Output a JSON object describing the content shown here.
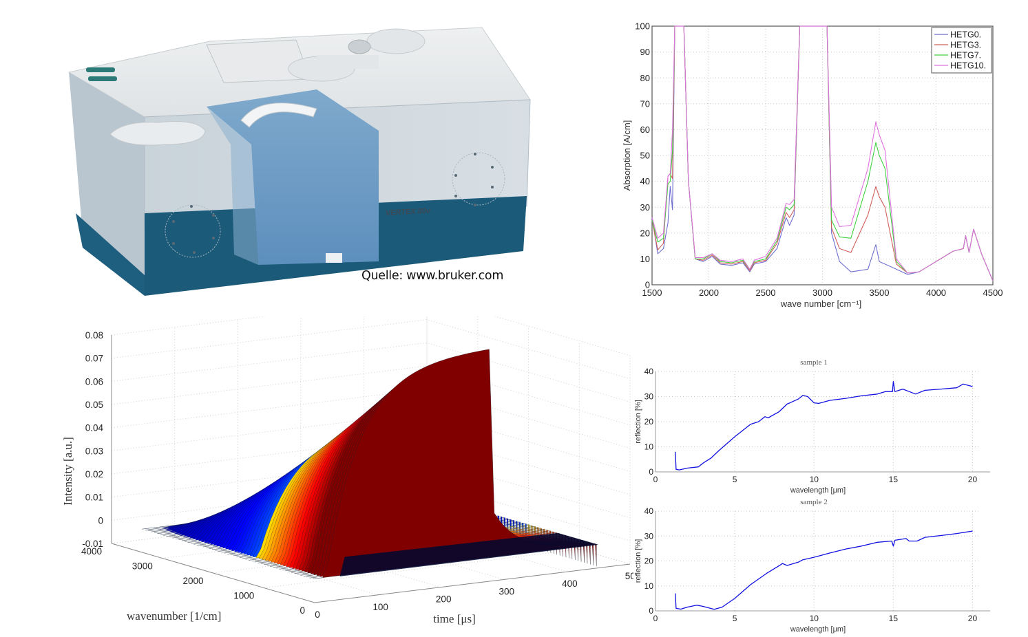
{
  "photo": {
    "subject": "FTIR spectrometer",
    "model_label": "VERTEX 80v",
    "caption": "Quelle: www.bruker.com"
  },
  "chart_data": [
    {
      "id": "absorption-spectrum",
      "type": "line",
      "title": "",
      "xlabel": "wave number [cm⁻¹]",
      "ylabel": "Absorption [A/cm]",
      "xlim": [
        1500,
        4500
      ],
      "ylim": [
        0,
        100
      ],
      "xticks": [
        1500,
        2000,
        2500,
        3000,
        3500,
        4000,
        4500
      ],
      "yticks": [
        0,
        10,
        20,
        30,
        40,
        50,
        60,
        70,
        80,
        90,
        100
      ],
      "grid": true,
      "legend_position": "upper right",
      "x": [
        1500,
        1550,
        1600,
        1640,
        1660,
        1680,
        1700,
        1750,
        1780,
        1820,
        1880,
        1950,
        2030,
        2100,
        2200,
        2300,
        2360,
        2400,
        2500,
        2600,
        2680,
        2710,
        2750,
        2800,
        2850,
        3000,
        3040,
        3080,
        3150,
        3250,
        3400,
        3470,
        3500,
        3550,
        3650,
        3750,
        3850,
        4000,
        4150,
        4240,
        4260,
        4290,
        4330,
        4400,
        4500
      ],
      "series": [
        {
          "name": "HETG0.",
          "color": "#6f6fd0",
          "values": [
            26,
            12,
            14,
            24,
            38,
            29,
            100,
            100,
            100,
            40,
            10,
            9,
            11,
            8,
            7.5,
            8.5,
            5,
            8,
            9,
            14,
            26,
            23,
            27,
            100,
            100,
            100,
            100,
            20,
            9,
            5,
            6,
            15.5,
            9,
            8,
            6,
            4,
            5,
            9,
            13,
            14,
            19,
            12.5,
            21.5,
            12,
            1.5
          ]
        },
        {
          "name": "HETG3.",
          "color": "#d0605a",
          "values": [
            25,
            13.5,
            16,
            42,
            43,
            41,
            100,
            100,
            100,
            40,
            10,
            9.5,
            11.5,
            8.5,
            8,
            9,
            5.5,
            8.5,
            9.5,
            16,
            28,
            26,
            29,
            100,
            100,
            100,
            100,
            22,
            14,
            12.5,
            27,
            38,
            34,
            30,
            8,
            4.5,
            5,
            9,
            13,
            14,
            19,
            12.5,
            21.5,
            12,
            1.5
          ]
        },
        {
          "name": "HETG7.",
          "color": "#40d040",
          "values": [
            25,
            16.5,
            18,
            39,
            40,
            52,
            100,
            100,
            100,
            40,
            10,
            10,
            12,
            9,
            8.5,
            9.5,
            6,
            9,
            10,
            17,
            30,
            29,
            31,
            100,
            100,
            100,
            100,
            25,
            18.5,
            18,
            40,
            55,
            50,
            45,
            9,
            4.5,
            5,
            9,
            13,
            14,
            19,
            12.5,
            21.5,
            12,
            1.5
          ]
        },
        {
          "name": "HETG10.",
          "color": "#e070e0",
          "values": [
            26,
            18,
            20,
            42,
            43,
            60,
            100,
            100,
            100,
            40,
            10.5,
            10.5,
            12,
            9.5,
            9,
            10,
            6,
            9.5,
            11,
            18,
            31.5,
            31,
            33,
            100,
            100,
            100,
            100,
            30,
            22.5,
            23,
            45,
            63,
            58,
            52,
            10,
            4.5,
            5,
            9,
            13,
            14,
            19,
            12.5,
            21.5,
            12,
            1.5
          ]
        }
      ]
    },
    {
      "id": "intensity-3d-surface",
      "type": "surface",
      "title": "",
      "xlabel": "time [μs]",
      "ylabel": "wavenumber [1/cm]",
      "zlabel": "Intensity [a.u.]",
      "xlim": [
        0,
        500
      ],
      "ylim": [
        0,
        4000
      ],
      "zlim": [
        -0.01,
        0.08
      ],
      "xticks": [
        0,
        100,
        200,
        300,
        400,
        500
      ],
      "yticks": [
        0,
        1000,
        2000,
        3000,
        4000
      ],
      "zticks": [
        -0.01,
        0,
        0.01,
        0.02,
        0.03,
        0.04,
        0.05,
        0.06,
        0.07,
        0.08
      ],
      "grid": true,
      "colormap": "jet",
      "description": "Intensity rises with time then falls abruptly in stepped shelves; highest peak ~0.08 near low wavenumber-high time; step edges at ~0.07, 0.05, 0.035, 0.02 then decays to 0 by ~450 μs"
    },
    {
      "id": "reflection-sample-1",
      "type": "line",
      "title": "sample 1",
      "xlabel": "wavelength [μm]",
      "ylabel": "reflection [%]",
      "xlim": [
        0,
        20.5
      ],
      "ylim": [
        0,
        40
      ],
      "xticks": [
        0,
        5,
        10,
        15,
        20
      ],
      "yticks": [
        0,
        10,
        20,
        30,
        40
      ],
      "grid": true,
      "series": [
        {
          "name": "sample 1",
          "color": "#1010e0",
          "x": [
            1.25,
            1.3,
            1.5,
            2,
            2.7,
            3,
            3.5,
            4,
            5,
            6,
            6.5,
            6.9,
            7.1,
            7.8,
            8.3,
            9,
            9.3,
            9.6,
            10,
            10.3,
            11,
            12,
            13,
            14,
            14.5,
            14.95,
            15,
            15.1,
            15.6,
            16,
            16.4,
            17,
            18,
            19,
            19.4,
            20
          ],
          "values": [
            8,
            1,
            0.8,
            1.5,
            2,
            3.5,
            5.5,
            8.5,
            14,
            19,
            20,
            22,
            21.5,
            24,
            27,
            29,
            30.5,
            30,
            27.5,
            27.3,
            28.5,
            29.3,
            30.3,
            31,
            32,
            32,
            36,
            32,
            33,
            32,
            31,
            32.5,
            33,
            33.5,
            35,
            34
          ]
        }
      ]
    },
    {
      "id": "reflection-sample-2",
      "type": "line",
      "title": "sample 2",
      "xlabel": "wavelength [μm]",
      "ylabel": "reflection [%]",
      "xlim": [
        0,
        20.5
      ],
      "ylim": [
        0,
        40
      ],
      "xticks": [
        0,
        5,
        10,
        15,
        20
      ],
      "yticks": [
        0,
        10,
        20,
        30,
        40
      ],
      "grid": true,
      "series": [
        {
          "name": "sample 2",
          "color": "#1010e0",
          "x": [
            1.25,
            1.3,
            1.6,
            2,
            2.6,
            3,
            3.7,
            4.2,
            5,
            6,
            7,
            7.9,
            8,
            8.3,
            9,
            9.3,
            10,
            11,
            12,
            13,
            14,
            14.9,
            15,
            15.1,
            15.8,
            16,
            16.5,
            17,
            18,
            19,
            20
          ],
          "values": [
            7,
            1,
            0.7,
            1.5,
            2.3,
            1.8,
            0.6,
            1.5,
            5,
            10.5,
            15,
            18.5,
            19,
            18.2,
            19.5,
            20.5,
            21.5,
            23.2,
            24.8,
            26,
            27.5,
            28,
            26,
            28.3,
            29,
            28,
            28,
            29.5,
            30.2,
            31,
            32
          ]
        }
      ]
    }
  ]
}
